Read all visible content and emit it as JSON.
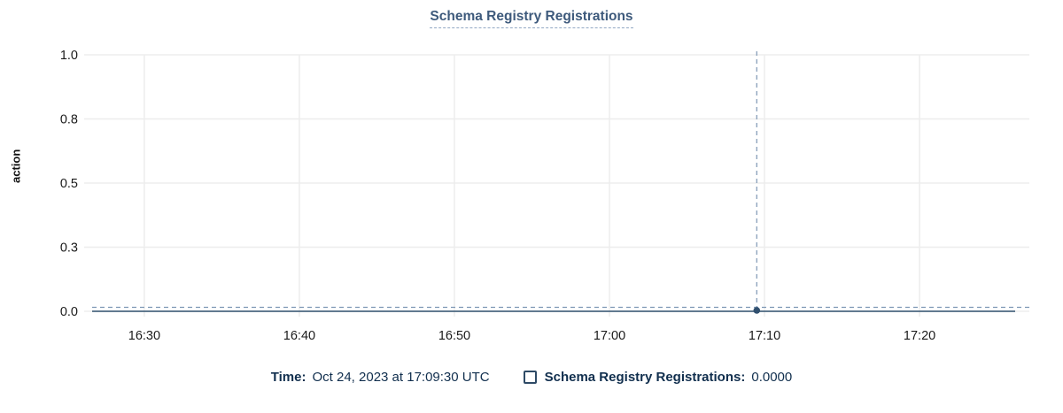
{
  "title": "Schema Registry Registrations",
  "colors": {
    "title": "#3e5a7c",
    "legend_text": "#112f4e",
    "series_line": "#31506f",
    "crosshair": "#7d97b4",
    "gridline": "#ededed",
    "tick_text": "#1a1a1a"
  },
  "legend": {
    "time_label": "Time:",
    "time_value": "Oct 24, 2023 at 17:09:30 UTC",
    "checkbox_checked": false,
    "series_label": "Schema Registry Registrations:",
    "series_value": "0.0000"
  },
  "chart_data": {
    "type": "line",
    "title": "Schema Registry Registrations",
    "xlabel": "",
    "ylabel": "action",
    "ylim": [
      0,
      1
    ],
    "grid": true,
    "legend_position": "bottom",
    "y_ticks": [
      {
        "value": 1.0,
        "label": "1.0"
      },
      {
        "value": 0.75,
        "label": "0.8"
      },
      {
        "value": 0.5,
        "label": "0.5"
      },
      {
        "value": 0.25,
        "label": "0.3"
      },
      {
        "value": 0.0,
        "label": "0.0"
      }
    ],
    "x_ticks": [
      "16:30",
      "16:40",
      "16:50",
      "17:00",
      "17:10",
      "17:20"
    ],
    "x_domain": {
      "start": "16:26:38",
      "end": "17:26:10"
    },
    "series": [
      {
        "name": "Schema Registry Registrations",
        "constant_value": 0,
        "start": "16:26:38",
        "end": "17:26:10"
      }
    ],
    "hover_point": {
      "time": "17:09:30",
      "value": 0.0,
      "value_label": "0.0000"
    }
  }
}
